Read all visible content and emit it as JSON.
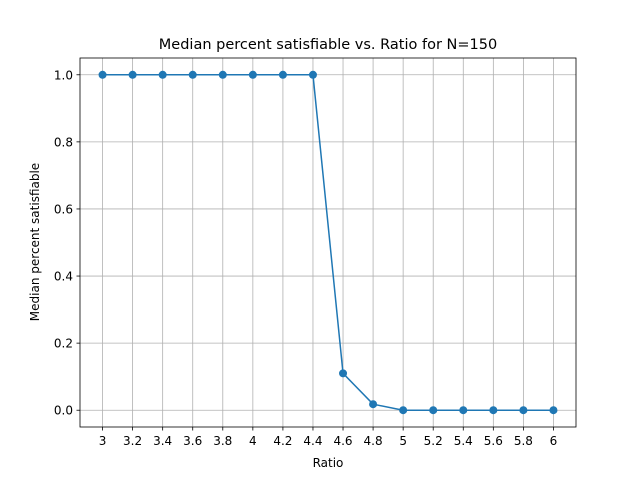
{
  "chart_data": {
    "type": "line",
    "title": "Median percent satisfiable vs. Ratio for N=150",
    "xlabel": "Ratio",
    "ylabel": "Median percent satisfiable",
    "x": [
      3,
      3.2,
      3.4,
      3.6,
      3.8,
      4,
      4.2,
      4.4,
      4.6,
      4.8,
      5,
      5.2,
      5.4,
      5.6,
      5.8,
      6
    ],
    "x_tick_labels": [
      "3",
      "3.2",
      "3.4",
      "3.6",
      "3.8",
      "4",
      "4.2",
      "4.4",
      "4.6",
      "4.8",
      "5",
      "5.2",
      "5.4",
      "5.6",
      "5.8",
      "6"
    ],
    "series": [
      {
        "values": [
          1.0,
          1.0,
          1.0,
          1.0,
          1.0,
          1.0,
          1.0,
          1.0,
          0.11,
          0.018,
          0.0,
          0.0,
          0.0,
          0.0,
          0.0,
          0.0
        ],
        "color": "#1f77b4",
        "marker": "circle"
      }
    ],
    "y_ticks": [
      0.0,
      0.2,
      0.4,
      0.6,
      0.8,
      1.0
    ],
    "y_tick_labels": [
      "0.0",
      "0.2",
      "0.4",
      "0.6",
      "0.8",
      "1.0"
    ],
    "xlim": [
      2.85,
      6.15
    ],
    "ylim": [
      -0.05,
      1.05
    ],
    "grid": true,
    "legend": "none"
  }
}
